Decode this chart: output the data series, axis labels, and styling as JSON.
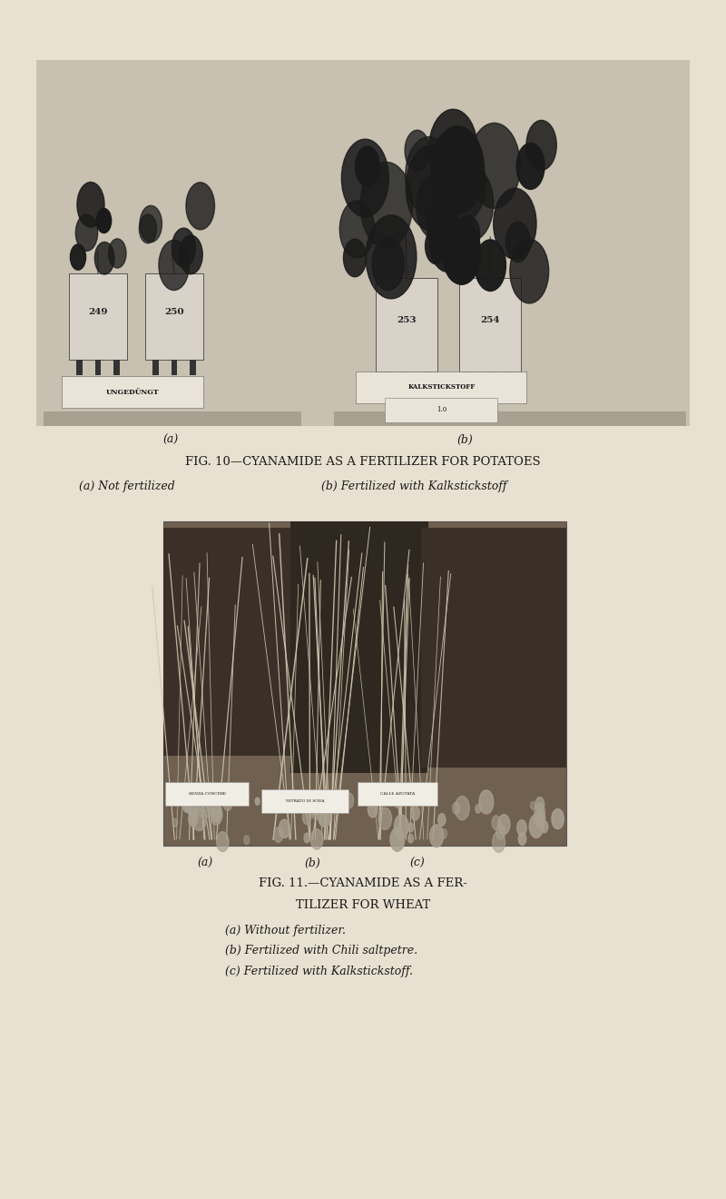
{
  "bg_color": "#e8e0d0",
  "fig_width": 8.0,
  "fig_height": 13.2,
  "fig10_title": "FIG. 10—CYANAMIDE AS A FERTILIZER FOR POTATOES",
  "fig10_caption_a": "(a) Not fertilized",
  "fig10_caption_b": "(b) Fertilized with Kalkstickstoff",
  "fig11_title_line1": "FIG. 11.—CYANAMIDE AS A FER-",
  "fig11_title_line2": "TILIZER FOR WHEAT",
  "fig11_caption_a": "(a) Without fertilizer.",
  "fig11_caption_b": "(b) Fertilized with Chili saltpetre.",
  "fig11_caption_c": "(c) Fertilized with Kalkstickstoff.",
  "text_color": "#1a1a1a",
  "photo10_bg": "#c8c0b0",
  "photo11_bg": "#706050",
  "pot_color": "#d8d2c8",
  "pot_edge": "#444444",
  "leg_color": "#333333",
  "plant_dark": "#1a1a1a",
  "sign_bg": "#eae4d8",
  "sign_edge": "#777777",
  "platform_color": "#a8a090",
  "wheat_light": "#d0c8b0",
  "wheat_dark": "#b0a888",
  "pebble_color": "#a8a090",
  "label_bg": "#f0ede5"
}
